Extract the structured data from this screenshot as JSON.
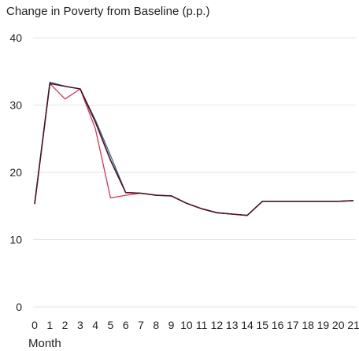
{
  "chart_data": {
    "type": "line",
    "title": "Change in Poverty from Baseline (p.p.)",
    "xlabel": "Month",
    "ylabel": "",
    "ylim": [
      0,
      40
    ],
    "yticks": [
      0,
      10,
      20,
      30,
      40
    ],
    "x": [
      0,
      1,
      2,
      3,
      4,
      5,
      6,
      7,
      8,
      9,
      10,
      11,
      12,
      13,
      14,
      15,
      16,
      17,
      18,
      19,
      20,
      21
    ],
    "grid": "horizontal",
    "series": [
      {
        "color": "#3a6a8c",
        "values": [
          15.3,
          33.4,
          32.8,
          32.4,
          27.8,
          22.5,
          17.0,
          16.9,
          16.6,
          16.5,
          15.4,
          14.6,
          14.0,
          13.8,
          13.6,
          15.7,
          15.7,
          15.7,
          15.7,
          15.7,
          15.7,
          15.8
        ]
      },
      {
        "color": "#d9334f",
        "values": [
          15.3,
          33.2,
          30.9,
          32.4,
          26.5,
          16.2,
          16.6,
          16.9,
          16.6,
          16.5,
          15.4,
          14.6,
          14.0,
          13.8,
          13.6,
          15.7,
          15.7,
          15.7,
          15.7,
          15.7,
          15.7,
          15.8
        ]
      },
      {
        "color": "#4a1024",
        "values": [
          15.3,
          33.2,
          32.8,
          32.4,
          27.5,
          21.8,
          17.0,
          16.9,
          16.6,
          16.5,
          15.4,
          14.6,
          14.0,
          13.8,
          13.6,
          15.7,
          15.7,
          15.7,
          15.7,
          15.7,
          15.7,
          15.8
        ]
      }
    ]
  }
}
